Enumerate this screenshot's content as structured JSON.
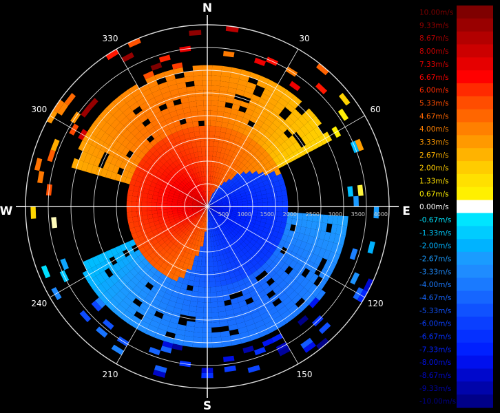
{
  "chart_data": {
    "type": "heatmap",
    "subtype": "polar-ppi-doppler-velocity",
    "compass_labels": [
      "N",
      "E",
      "S",
      "W"
    ],
    "azimuth_labels": [
      "30",
      "60",
      "120",
      "150",
      "210",
      "240",
      "300",
      "330"
    ],
    "range_ticks": [
      "500",
      "1000",
      "1500",
      "2000",
      "2500",
      "3000",
      "3500",
      "4000"
    ],
    "range_max": 4000,
    "colorbar": {
      "labels": [
        "10.00m/s",
        "9.33m/s",
        "8.67m/s",
        "8.00m/s",
        "7.33m/s",
        "6.67m/s",
        "6.00m/s",
        "5.33m/s",
        "4.67m/s",
        "4.00m/s",
        "3.33m/s",
        "2.67m/s",
        "2.00m/s",
        "1.33m/s",
        "0.67m/s",
        "0.00m/s",
        "-0.67m/s",
        "-1.33m/s",
        "-2.00m/s",
        "-2.67m/s",
        "-3.33m/s",
        "-4.00m/s",
        "-4.67m/s",
        "-5.33m/s",
        "-6.00m/s",
        "-6.67m/s",
        "-7.33m/s",
        "-8.00m/s",
        "-8.67m/s",
        "-9.33m/s",
        "-10.00m/s"
      ],
      "values": [
        10.0,
        9.33,
        8.67,
        8.0,
        7.33,
        6.67,
        6.0,
        5.33,
        4.67,
        4.0,
        3.33,
        2.67,
        2.0,
        1.33,
        0.67,
        0.0,
        -0.67,
        -1.33,
        -2.0,
        -2.67,
        -3.33,
        -4.0,
        -4.67,
        -5.33,
        -6.0,
        -6.67,
        -7.33,
        -8.0,
        -8.67,
        -9.33,
        -10.0
      ],
      "colors": [
        "#7f0000",
        "#990000",
        "#b30000",
        "#cc0000",
        "#e60000",
        "#ff0000",
        "#ff2a00",
        "#ff4d00",
        "#ff6600",
        "#ff8000",
        "#ff9900",
        "#ffb300",
        "#ffcc00",
        "#ffe000",
        "#fff000",
        "#ffffff",
        "#00e5ff",
        "#00ccff",
        "#00b3ff",
        "#1a9cff",
        "#1f8cff",
        "#1a7aff",
        "#1666ff",
        "#1052ff",
        "#0a3fff",
        "#0530ff",
        "#0020ff",
        "#0010ee",
        "#0008cc",
        "#0004aa",
        "#000088"
      ]
    },
    "velocity_field": {
      "description_units": "m/s",
      "positive_region_azimuth_deg": [
        290,
        70
      ],
      "negative_region_azimuth_deg": [
        110,
        250
      ],
      "positive_peak": 7.5,
      "negative_peak": -8.0,
      "near_range_inbound_sector_deg": [
        20,
        175
      ],
      "near_range_outbound_sector_deg": [
        185,
        10
      ]
    },
    "grid": true,
    "legend_position": "right"
  }
}
